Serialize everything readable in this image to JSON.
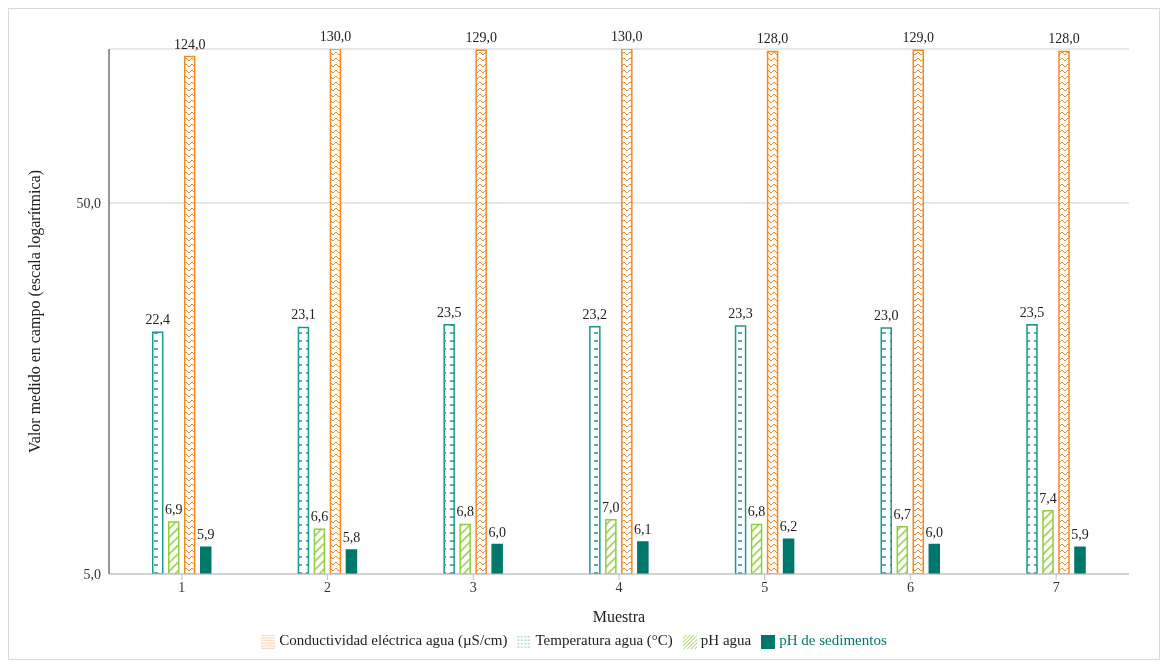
{
  "chart_data": {
    "type": "bar",
    "xlabel": "Muestra",
    "ylabel": "Valor medido en campo (escala logarítmica)",
    "categories": [
      "1",
      "2",
      "3",
      "4",
      "5",
      "6",
      "7"
    ],
    "series": [
      {
        "name": "Temperatura agua (°C)",
        "color": "#1a9a8f",
        "values": [
          22.4,
          23.1,
          23.5,
          23.2,
          23.3,
          23.0,
          23.5
        ],
        "value_labels": [
          "22,4",
          "23,1",
          "23,5",
          "23,2",
          "23,3",
          "23,0",
          "23,5"
        ]
      },
      {
        "name": "pH agua",
        "color": "#8fce3f",
        "values": [
          6.9,
          6.6,
          6.8,
          7.0,
          6.8,
          6.7,
          7.4
        ],
        "value_labels": [
          "6,9",
          "6,6",
          "6,8",
          "7,0",
          "6,8",
          "6,7",
          "7,4"
        ]
      },
      {
        "name": "Conductividad eléctrica agua (µS/cm)",
        "color": "#f08a24",
        "values": [
          124.0,
          130.0,
          129.0,
          130.0,
          128.0,
          129.0,
          128.0
        ],
        "value_labels": [
          "124,0",
          "130,0",
          "129,0",
          "130,0",
          "128,0",
          "129,0",
          "128,0"
        ]
      },
      {
        "name": "pH de sedimentos",
        "color": "#00776b",
        "values": [
          5.9,
          5.8,
          6.0,
          6.1,
          6.2,
          6.0,
          5.9
        ],
        "value_labels": [
          "5,9",
          "5,8",
          "6,0",
          "6,1",
          "6,2",
          "6,0",
          "5,9"
        ]
      }
    ],
    "log": "y",
    "ylim": [
      5,
      130
    ],
    "yticks": [
      {
        "value": 5,
        "label": "5,0"
      },
      {
        "value": 50,
        "label": "50,0"
      }
    ],
    "grid": "y",
    "legend": "bottom"
  }
}
